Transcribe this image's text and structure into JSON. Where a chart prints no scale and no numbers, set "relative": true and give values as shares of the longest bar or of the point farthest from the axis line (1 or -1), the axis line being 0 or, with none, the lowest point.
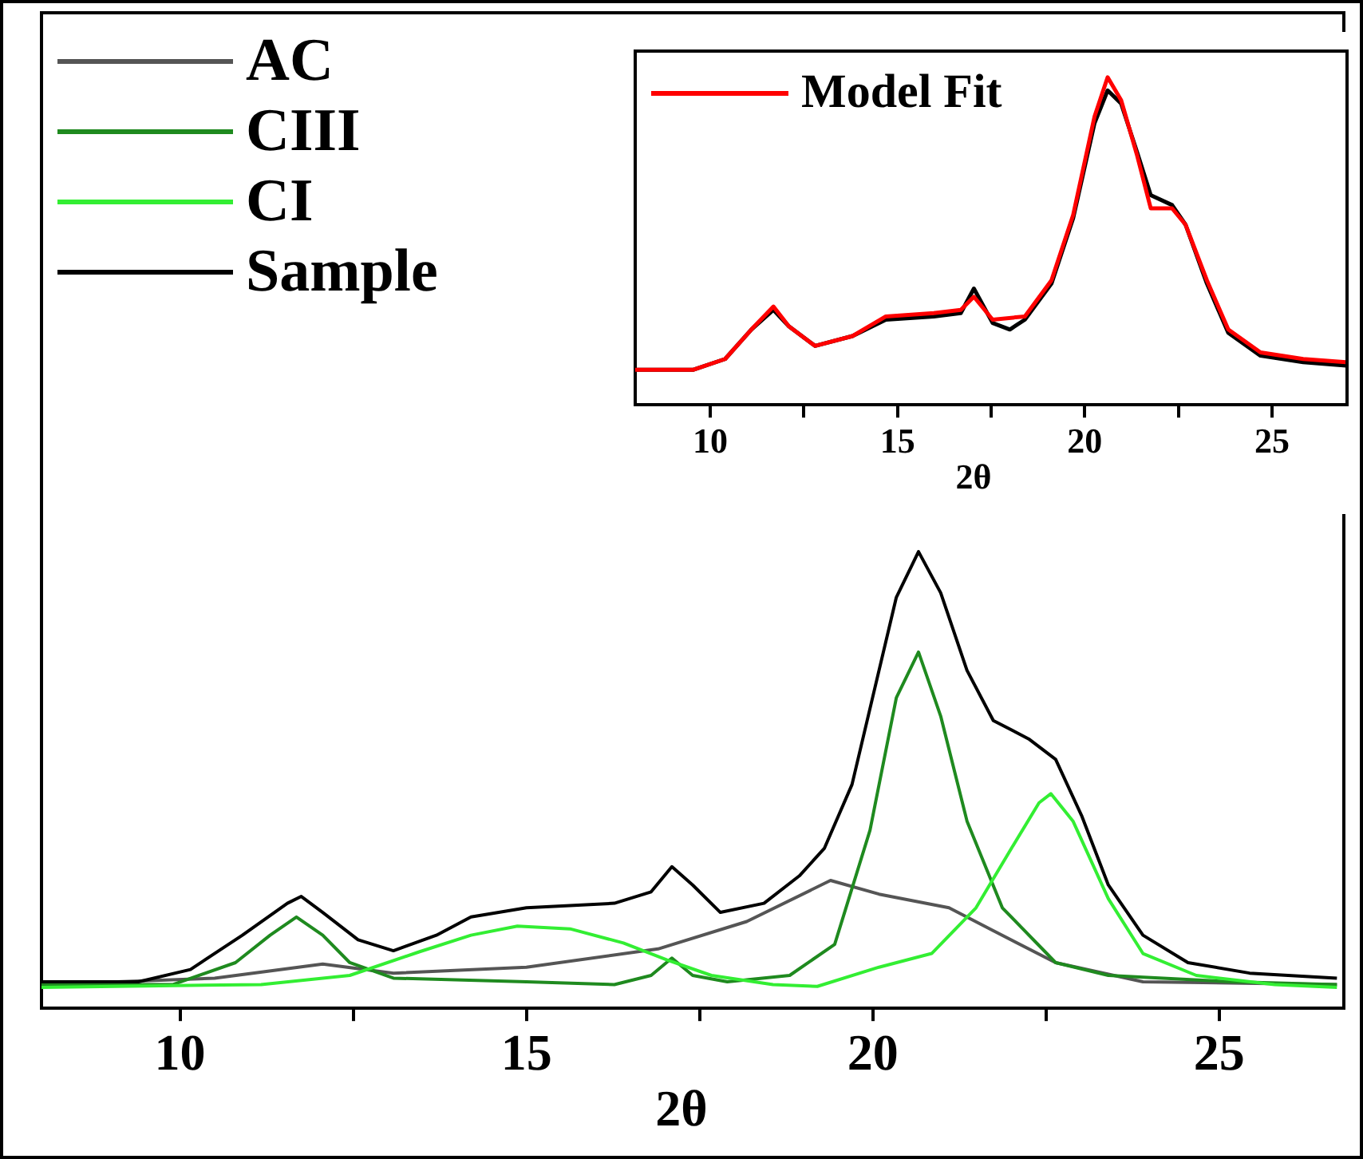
{
  "chart_data": [
    {
      "type": "line",
      "xlabel": "2θ",
      "relative": true,
      "legend": "top left",
      "xlim": [
        8,
        26.8
      ],
      "xticks": [
        10,
        {
          "value": 12.5,
          "label": null
        },
        15,
        {
          "value": 17.5,
          "label": null
        },
        20,
        {
          "value": 22.5,
          "label": null
        },
        25
      ],
      "series": [
        {
          "name": "AC",
          "color": "#555555",
          "x": [
            8.0,
            10.5,
            12.06,
            13.08,
            15.0,
            16.9,
            18.18,
            19.39,
            20.09,
            21.1,
            21.74,
            22.64,
            23.9,
            26.7
          ],
          "values": [
            0.052,
            0.066,
            0.097,
            0.077,
            0.09,
            0.13,
            0.19,
            0.28,
            0.25,
            0.22,
            0.17,
            0.1,
            0.058,
            0.052
          ]
        },
        {
          "name": "CIII",
          "color": "#1f8a1f",
          "x": [
            8.0,
            9.9,
            10.8,
            11.3,
            11.68,
            12.06,
            12.45,
            13.08,
            15.0,
            16.27,
            16.8,
            17.1,
            17.4,
            17.9,
            18.8,
            19.45,
            19.96,
            20.34,
            20.66,
            20.98,
            21.36,
            21.87,
            22.64,
            23.4,
            25.2,
            26.7
          ],
          "values": [
            0.052,
            0.052,
            0.1,
            0.16,
            0.2,
            0.16,
            0.1,
            0.066,
            0.058,
            0.052,
            0.072,
            0.11,
            0.072,
            0.058,
            0.072,
            0.14,
            0.39,
            0.68,
            0.78,
            0.64,
            0.41,
            0.22,
            0.1,
            0.072,
            0.058,
            0.052
          ]
        },
        {
          "name": "CI",
          "color": "#33ee33",
          "x": [
            8.0,
            11.17,
            12.45,
            13.46,
            14.2,
            14.87,
            15.63,
            16.4,
            17.03,
            17.67,
            18.56,
            19.2,
            20.09,
            20.85,
            21.49,
            22.0,
            22.4,
            22.57,
            22.89,
            23.4,
            23.9,
            24.67,
            25.8,
            26.7
          ],
          "values": [
            0.046,
            0.052,
            0.072,
            0.124,
            0.16,
            0.18,
            0.174,
            0.143,
            0.106,
            0.072,
            0.052,
            0.048,
            0.09,
            0.12,
            0.22,
            0.35,
            0.45,
            0.47,
            0.41,
            0.24,
            0.12,
            0.072,
            0.052,
            0.046
          ]
        },
        {
          "name": "Sample",
          "color": "#000000",
          "x": [
            8.0,
            9.4,
            10.15,
            10.9,
            11.55,
            11.75,
            12.06,
            12.57,
            13.08,
            13.7,
            14.2,
            15.0,
            16.27,
            16.8,
            17.1,
            17.4,
            17.8,
            18.43,
            18.94,
            19.3,
            19.7,
            20.09,
            20.34,
            20.66,
            20.98,
            21.36,
            21.74,
            22.25,
            22.64,
            23.02,
            23.4,
            23.9,
            24.55,
            25.44,
            26.7
          ],
          "values": [
            0.058,
            0.058,
            0.085,
            0.16,
            0.23,
            0.245,
            0.21,
            0.15,
            0.126,
            0.16,
            0.2,
            0.22,
            0.23,
            0.255,
            0.31,
            0.27,
            0.21,
            0.23,
            0.29,
            0.35,
            0.49,
            0.74,
            0.9,
            1.0,
            0.91,
            0.74,
            0.63,
            0.59,
            0.545,
            0.42,
            0.27,
            0.16,
            0.1,
            0.077,
            0.066
          ]
        }
      ]
    },
    {
      "type": "line",
      "xlabel": "2θ",
      "relative": true,
      "legend": "top left",
      "xlim": [
        8,
        27
      ],
      "xticks": [
        10,
        {
          "value": 12.5,
          "label": null
        },
        15,
        {
          "value": 17.5,
          "label": null
        },
        20,
        {
          "value": 22.5,
          "label": null
        },
        25
      ],
      "series": [
        {
          "color": "#000000",
          "x": [
            8.0,
            9.54,
            10.4,
            11.1,
            11.69,
            12.1,
            12.8,
            13.8,
            14.69,
            15.97,
            16.69,
            17.04,
            17.54,
            18.0,
            18.4,
            19.11,
            19.69,
            20.26,
            20.61,
            20.97,
            21.4,
            21.76,
            22.33,
            22.69,
            23.26,
            23.83,
            24.69,
            25.83,
            26.97
          ],
          "values": [
            0.107,
            0.107,
            0.14,
            0.23,
            0.29,
            0.24,
            0.18,
            0.21,
            0.26,
            0.27,
            0.28,
            0.355,
            0.25,
            0.23,
            0.26,
            0.37,
            0.57,
            0.86,
            0.96,
            0.92,
            0.77,
            0.64,
            0.61,
            0.55,
            0.37,
            0.22,
            0.15,
            0.13,
            0.12
          ]
        },
        {
          "name": "Model Fit",
          "color": "#ff0000",
          "x": [
            8.0,
            9.54,
            10.4,
            11.1,
            11.69,
            12.1,
            12.8,
            13.8,
            14.69,
            15.97,
            16.69,
            17.04,
            17.54,
            18.4,
            19.11,
            19.69,
            20.26,
            20.61,
            20.97,
            21.4,
            21.76,
            22.33,
            22.69,
            23.26,
            23.83,
            24.69,
            25.83,
            26.97
          ],
          "values": [
            0.107,
            0.107,
            0.14,
            0.23,
            0.3,
            0.24,
            0.18,
            0.21,
            0.27,
            0.28,
            0.29,
            0.33,
            0.26,
            0.27,
            0.38,
            0.58,
            0.88,
            1.0,
            0.93,
            0.76,
            0.6,
            0.6,
            0.55,
            0.38,
            0.23,
            0.16,
            0.14,
            0.13
          ]
        }
      ]
    }
  ]
}
